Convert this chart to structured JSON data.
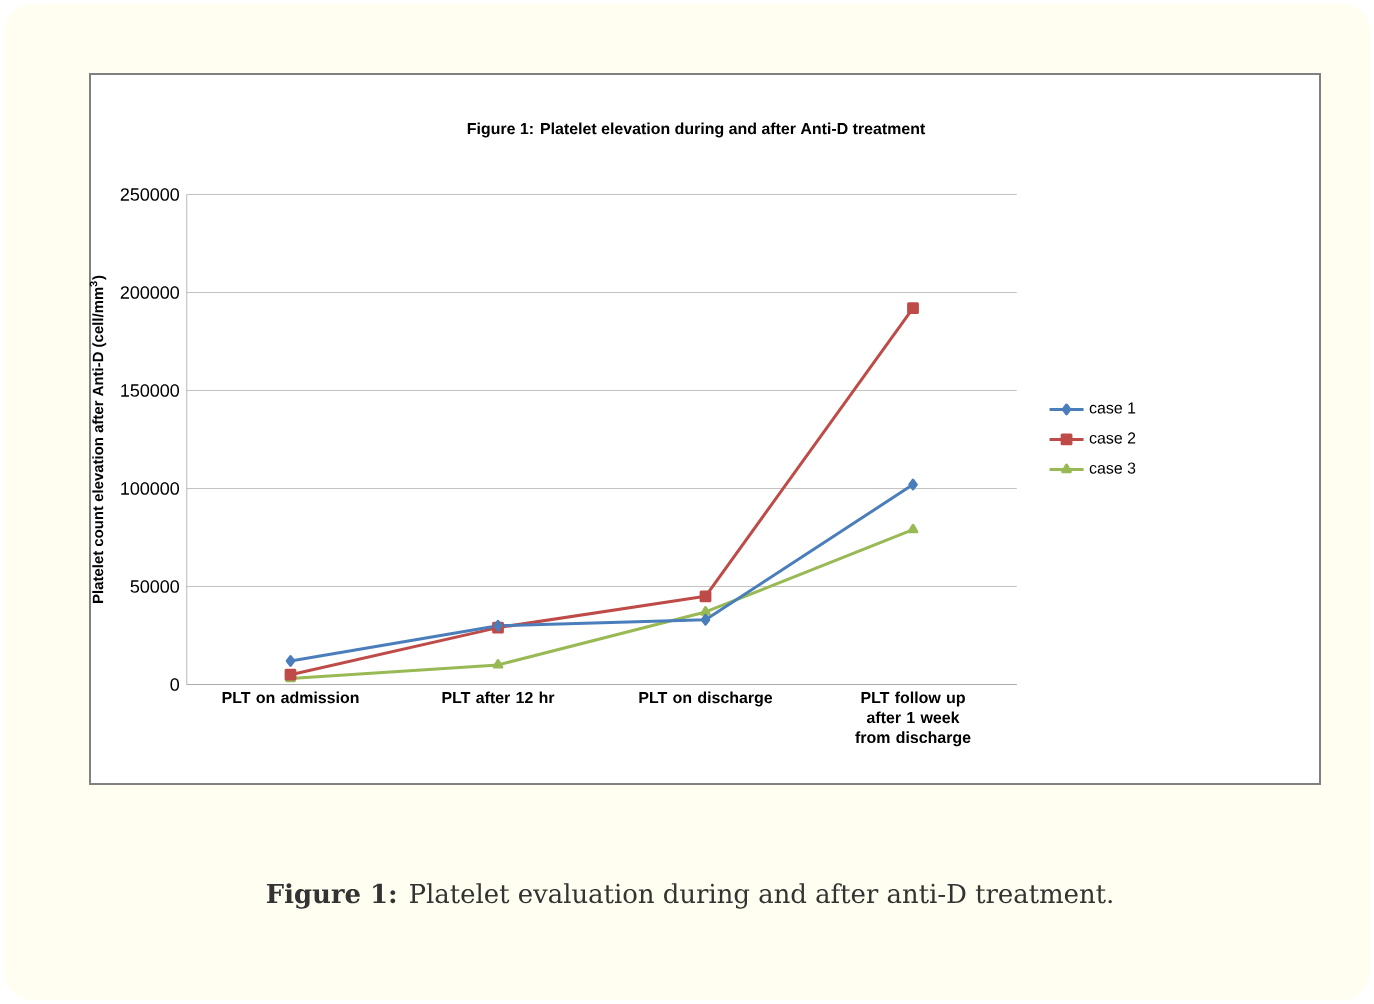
{
  "chart_data": {
    "type": "line",
    "title": "Figure 1: Platelet elevation during and after Anti-D treatment",
    "ylabel": "Platelet count elevation  after Anti-D (cell/mm$^{3}$)",
    "categories": [
      "PLT on admission",
      "PLT after 12 hr",
      "PLT on discharge",
      "PLT follow up after 1 week from discharge"
    ],
    "series": [
      {
        "name": "case 1",
        "color": "#4a7ebb",
        "marker": "diamond",
        "values": [
          12000,
          30000,
          33000,
          102000
        ]
      },
      {
        "name": "case 2",
        "color": "#be4b48",
        "marker": "square",
        "values": [
          5000,
          29000,
          45000,
          192000
        ]
      },
      {
        "name": "case 3",
        "color": "#98b954",
        "marker": "triangle",
        "values": [
          3000,
          10000,
          37000,
          79000
        ]
      }
    ],
    "ylim": [
      0,
      250000
    ],
    "yticks": [
      0,
      50000,
      100000,
      150000,
      200000,
      250000
    ],
    "grid": "y",
    "legend": "right",
    "line_style": "solid",
    "annotations": [
      "**Figure 1:** Platelet evaluation during and after anti-D treatment."
    ]
  }
}
